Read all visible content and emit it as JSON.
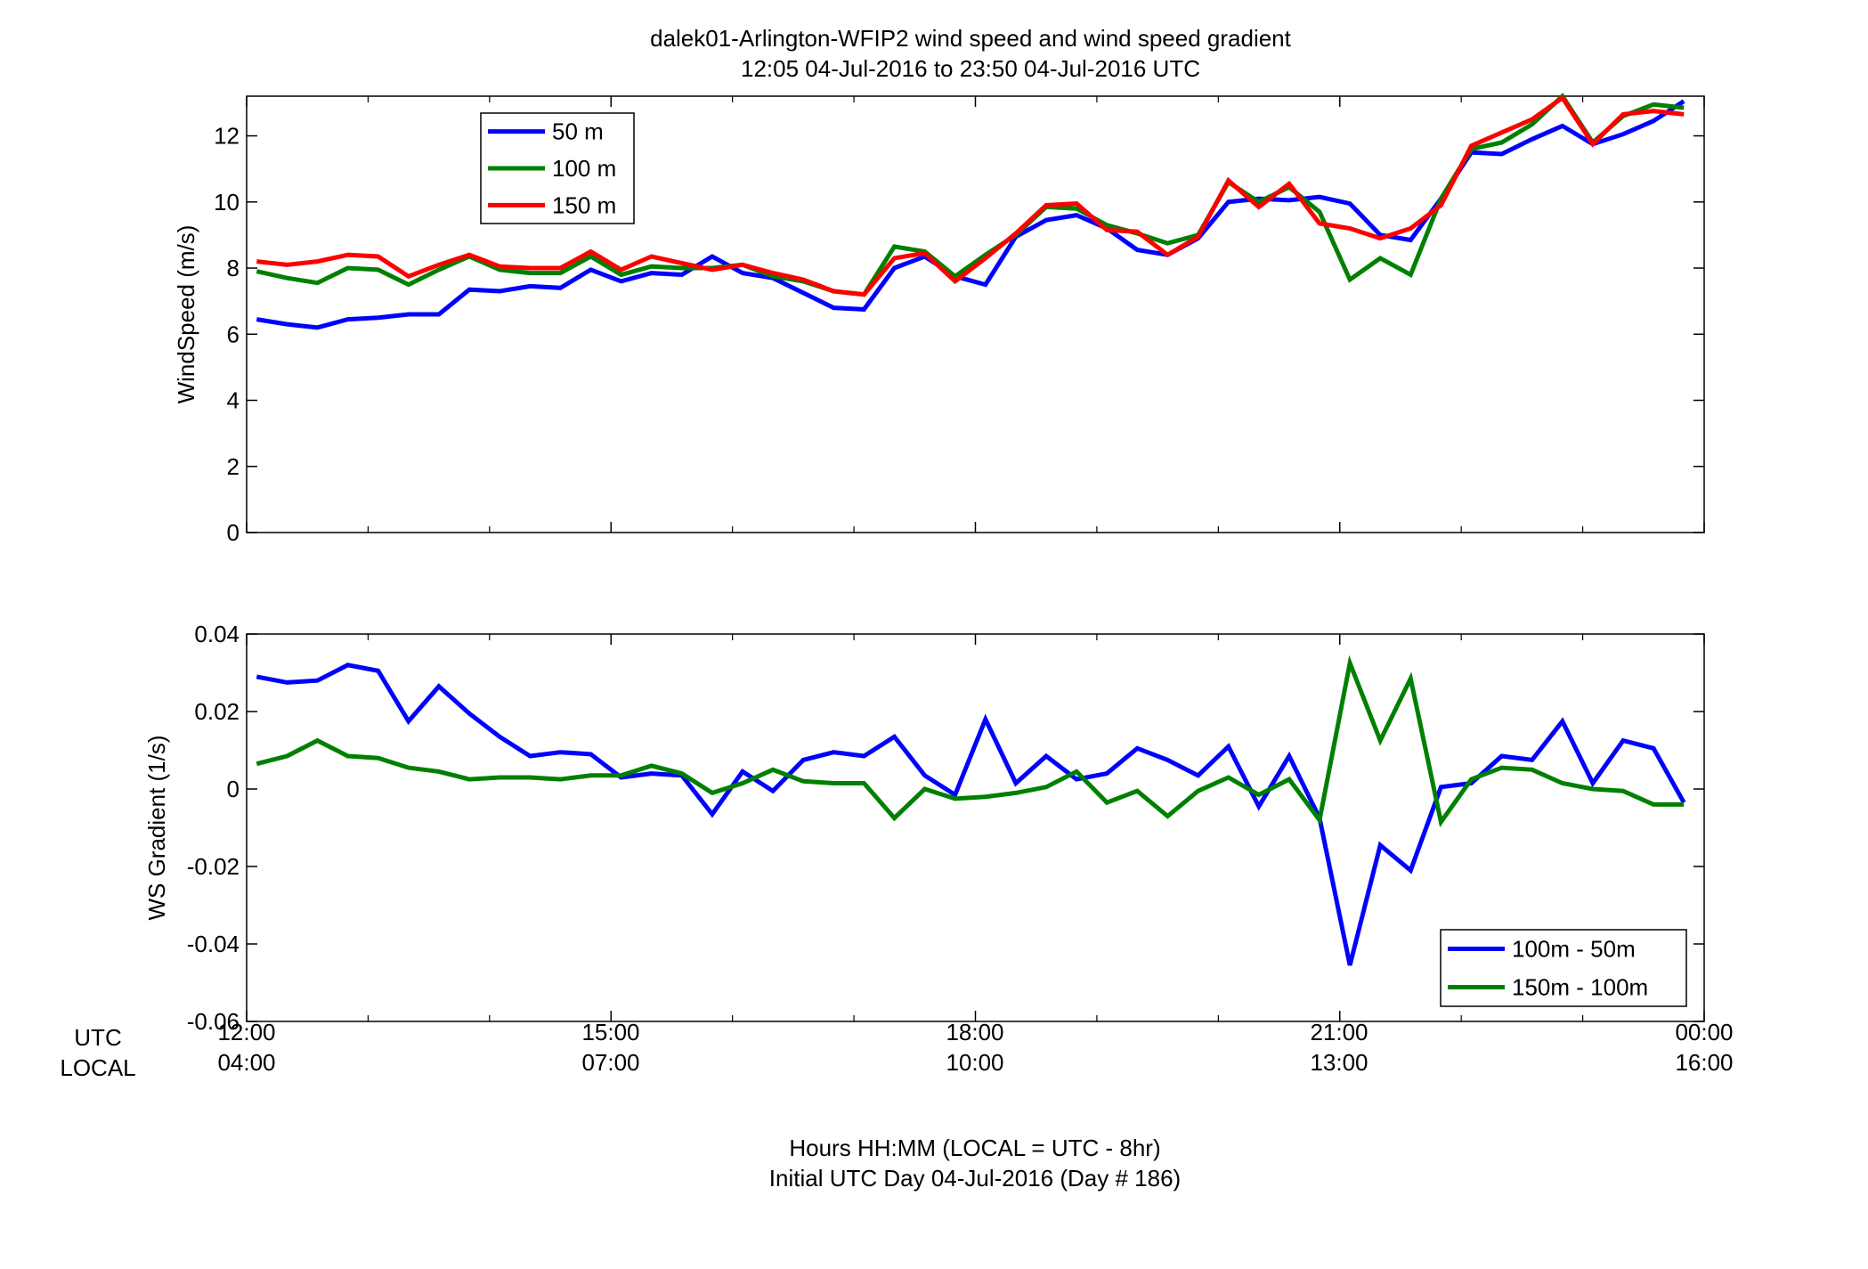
{
  "figure": {
    "title_line1": "dalek01-Arlington-WFIP2  wind speed and wind speed gradient",
    "title_line2": "12:05 04-Jul-2016 to 23:50 04-Jul-2016  UTC",
    "xlabel_line1": "Hours HH:MM  (LOCAL = UTC - 8hr)",
    "xlabel_line2": "Initial UTC Day 04-Jul-2016 (Day # 186)",
    "row_label_utc": "UTC",
    "row_label_local": "LOCAL",
    "x_ticks_utc": [
      "12:00",
      "15:00",
      "18:00",
      "21:00",
      "00:00"
    ],
    "x_ticks_local": [
      "04:00",
      "07:00",
      "10:00",
      "13:00",
      "16:00"
    ]
  },
  "chart_data": [
    {
      "type": "line",
      "ylabel": "WindSpeed (m/s)",
      "xlim": [
        12.0,
        24.0
      ],
      "ylim": [
        0,
        13.2
      ],
      "y_ticks": [
        0,
        2,
        4,
        6,
        8,
        10,
        12
      ],
      "x_tick_values": [
        12,
        15,
        18,
        21,
        24
      ],
      "grid": false,
      "legend_position": "top-left",
      "x": [
        12.083,
        12.333,
        12.583,
        12.833,
        13.083,
        13.333,
        13.583,
        13.833,
        14.083,
        14.333,
        14.583,
        14.833,
        15.083,
        15.333,
        15.583,
        15.833,
        16.083,
        16.333,
        16.583,
        16.833,
        17.083,
        17.333,
        17.583,
        17.833,
        18.083,
        18.333,
        18.583,
        18.833,
        19.083,
        19.333,
        19.583,
        19.833,
        20.083,
        20.333,
        20.583,
        20.833,
        21.083,
        21.333,
        21.583,
        21.833,
        22.083,
        22.333,
        22.583,
        22.833,
        23.083,
        23.333,
        23.583,
        23.833
      ],
      "series": [
        {
          "name": "50 m",
          "color": "#0000ff",
          "values": [
            6.45,
            6.3,
            6.2,
            6.45,
            6.5,
            6.6,
            6.6,
            7.35,
            7.3,
            7.45,
            7.4,
            7.95,
            7.6,
            7.85,
            7.8,
            8.35,
            7.85,
            7.7,
            7.25,
            6.8,
            6.75,
            8.0,
            8.35,
            7.75,
            7.5,
            8.95,
            9.45,
            9.6,
            9.2,
            8.55,
            8.4,
            8.9,
            10.0,
            10.1,
            10.05,
            10.15,
            9.95,
            9.0,
            8.85,
            10.1,
            11.5,
            11.45,
            11.9,
            12.3,
            11.75,
            12.05,
            12.45,
            13.05
          ]
        },
        {
          "name": "100 m",
          "color": "#008000",
          "values": [
            7.9,
            7.7,
            7.55,
            8.0,
            7.95,
            7.5,
            7.95,
            8.35,
            7.95,
            7.85,
            7.85,
            8.35,
            7.8,
            8.05,
            8.0,
            8.0,
            8.1,
            7.75,
            7.6,
            7.3,
            7.2,
            8.65,
            8.5,
            7.75,
            8.4,
            9.0,
            9.85,
            9.8,
            9.3,
            9.05,
            8.75,
            9.0,
            10.6,
            10.0,
            10.45,
            9.7,
            7.65,
            8.3,
            7.8,
            10.1,
            11.6,
            11.8,
            12.35,
            13.2,
            11.8,
            12.6,
            12.95,
            12.85
          ]
        },
        {
          "name": "150 m",
          "color": "#ff0000",
          "values": [
            8.2,
            8.1,
            8.2,
            8.4,
            8.35,
            7.75,
            8.1,
            8.4,
            8.05,
            8.0,
            8.0,
            8.5,
            7.95,
            8.35,
            8.15,
            7.95,
            8.1,
            7.85,
            7.65,
            7.3,
            7.2,
            8.3,
            8.45,
            7.6,
            8.3,
            9.05,
            9.9,
            9.95,
            9.15,
            9.1,
            8.4,
            8.95,
            10.65,
            9.85,
            10.55,
            9.35,
            9.2,
            8.9,
            9.2,
            9.9,
            11.7,
            12.1,
            12.5,
            13.15,
            11.75,
            12.65,
            12.75,
            12.65
          ]
        }
      ]
    },
    {
      "type": "line",
      "ylabel": "WS Gradient (1/s)",
      "xlim": [
        12.0,
        24.0
      ],
      "ylim": [
        -0.06,
        0.04
      ],
      "y_ticks": [
        -0.06,
        -0.04,
        -0.02,
        0,
        0.02,
        0.04
      ],
      "y_tick_labels": [
        "-0.06",
        "-0.04",
        "-0.02",
        "0",
        "0.02",
        "0.04"
      ],
      "x_tick_values": [
        12,
        15,
        18,
        21,
        24
      ],
      "grid": false,
      "legend_position": "bottom-right",
      "x": [
        12.083,
        12.333,
        12.583,
        12.833,
        13.083,
        13.333,
        13.583,
        13.833,
        14.083,
        14.333,
        14.583,
        14.833,
        15.083,
        15.333,
        15.583,
        15.833,
        16.083,
        16.333,
        16.583,
        16.833,
        17.083,
        17.333,
        17.583,
        17.833,
        18.083,
        18.333,
        18.583,
        18.833,
        19.083,
        19.333,
        19.583,
        19.833,
        20.083,
        20.333,
        20.583,
        20.833,
        21.083,
        21.333,
        21.583,
        21.833,
        22.083,
        22.333,
        22.583,
        22.833,
        23.083,
        23.333,
        23.583,
        23.833
      ],
      "series": [
        {
          "name": "100m - 50m",
          "color": "#0000ff",
          "values": [
            0.029,
            0.0275,
            0.028,
            0.032,
            0.0305,
            0.0175,
            0.0265,
            0.0195,
            0.0135,
            0.0085,
            0.0095,
            0.009,
            0.003,
            0.004,
            0.0035,
            -0.0065,
            0.0045,
            -0.0005,
            0.0075,
            0.0095,
            0.0085,
            0.0135,
            0.0035,
            -0.0015,
            0.018,
            0.0015,
            0.0085,
            0.0025,
            0.004,
            0.0105,
            0.0075,
            0.0035,
            0.011,
            -0.0045,
            0.0085,
            -0.0075,
            -0.0455,
            -0.0145,
            -0.021,
            0.0005,
            0.0015,
            0.0085,
            0.0075,
            0.0175,
            0.0015,
            0.0125,
            0.0105,
            -0.0035
          ]
        },
        {
          "name": "150m - 100m",
          "color": "#008000",
          "values": [
            0.0065,
            0.0085,
            0.0125,
            0.0085,
            0.008,
            0.0055,
            0.0045,
            0.0025,
            0.003,
            0.003,
            0.0025,
            0.0035,
            0.0035,
            0.006,
            0.004,
            -0.001,
            0.0015,
            0.005,
            0.002,
            0.0015,
            0.0015,
            -0.0075,
            0.0,
            -0.0025,
            -0.002,
            -0.001,
            0.0005,
            0.0045,
            -0.0035,
            -0.0005,
            -0.007,
            -0.0005,
            0.003,
            -0.0015,
            0.0025,
            -0.008,
            0.0325,
            0.0125,
            0.0285,
            -0.0085,
            0.0025,
            0.0055,
            0.005,
            0.0015,
            0.0,
            -0.0005,
            -0.004,
            -0.004
          ]
        }
      ]
    }
  ]
}
